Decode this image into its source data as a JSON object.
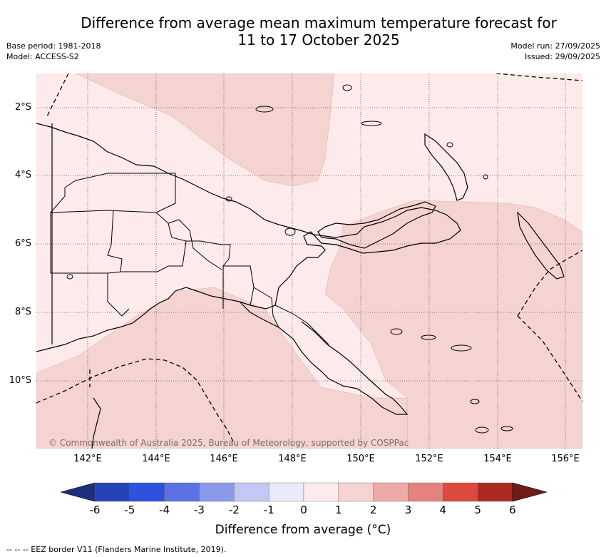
{
  "title": {
    "line1": "Difference from average mean maximum temperature forecast for",
    "line2": "11 to 17 October 2025"
  },
  "meta": {
    "base_period": "Base period: 1981-2018",
    "model": "Model: ACCESS-S2",
    "model_run": "Model run: 27/09/2025",
    "issued": "Issued: 29/09/2025"
  },
  "map": {
    "region": "Papua New Guinea",
    "latitude_labels": [
      "2°S",
      "4°S",
      "6°S",
      "8°S",
      "10°S"
    ],
    "longitude_labels": [
      "142°E",
      "144°E",
      "146°E",
      "148°E",
      "150°E",
      "152°E",
      "154°E",
      "156°E"
    ],
    "copyright": "© Commonwealth of Australia 2025, Bureau of Meteorology, supported by COSPPac",
    "colors": {
      "zero_to_one": "#fcebea",
      "one_to_two": "#f4d3d0",
      "grid": "#555555",
      "coast": "#000000"
    }
  },
  "colorbar": {
    "label": "Difference from average (°C)",
    "ticks": [
      "-6",
      "-5",
      "-4",
      "-3",
      "-2",
      "-1",
      "0",
      "1",
      "2",
      "3",
      "4",
      "5",
      "6"
    ],
    "colors": [
      "#1b2f7c",
      "#2742b6",
      "#2f52de",
      "#5a72e4",
      "#8a99ea",
      "#c2c8f3",
      "#e8ebf9",
      "#fcebea",
      "#f4d3d0",
      "#eeaaa6",
      "#e5827d",
      "#dd4a3f",
      "#ad2823",
      "#6e1c17"
    ]
  },
  "legend_note": "-- -- -- EEZ border V11 (Flanders Marine Institute, 2019)."
}
